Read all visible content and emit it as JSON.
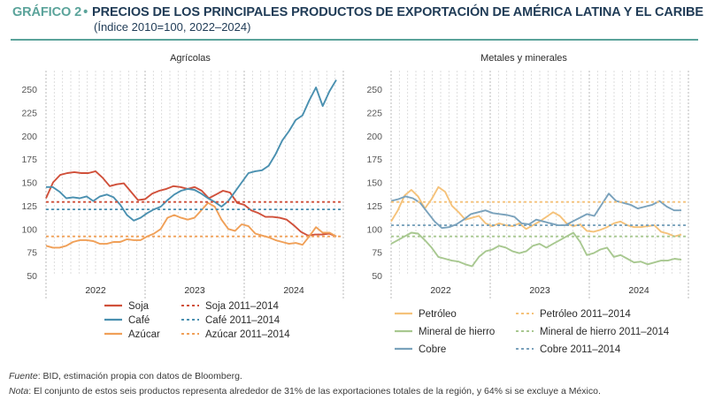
{
  "header": {
    "figure_label": "GRÁFICO 2",
    "separator": "•",
    "title": "PRECIOS DE LOS PRINCIPALES PRODUCTOS DE EXPORTACIÓN DE AMÉRICA LATINA Y EL CARIBE",
    "subtitle": "(Índice 2010=100, 2022–2024)"
  },
  "chart_data": [
    {
      "type": "line",
      "title": "Agrícolas",
      "ylim": [
        50,
        270
      ],
      "yticks": [
        50,
        75,
        100,
        125,
        150,
        175,
        200,
        225,
        250
      ],
      "x_labels": [
        "2022",
        "2023",
        "2024"
      ],
      "x_range": [
        "2022-01",
        "2024-12"
      ],
      "grid": "vertical-dashed",
      "legend_placement": "bottom",
      "series": [
        {
          "name": "Soja",
          "color": "#d0503a",
          "style": "solid",
          "values": [
            133,
            150,
            158,
            160,
            161,
            160,
            160,
            162,
            155,
            146,
            148,
            149,
            140,
            131,
            132,
            138,
            141,
            143,
            146,
            145,
            143,
            145,
            141,
            133,
            137,
            141,
            139,
            128,
            126,
            120,
            117,
            113,
            113,
            112,
            110,
            104,
            97,
            93,
            94,
            94,
            95,
            92
          ]
        },
        {
          "name": "Café",
          "color": "#4a90b0",
          "style": "solid",
          "values": [
            145,
            145,
            140,
            133,
            134,
            133,
            135,
            130,
            135,
            137,
            134,
            126,
            115,
            109,
            112,
            117,
            121,
            124,
            131,
            137,
            141,
            143,
            142,
            138,
            133,
            129,
            124,
            130,
            140,
            150,
            160,
            162,
            163,
            168,
            180,
            195,
            205,
            217,
            222,
            238,
            252,
            232,
            248,
            260
          ]
        },
        {
          "name": "Azúcar",
          "color": "#f0a058",
          "style": "solid",
          "values": [
            82,
            80,
            80,
            82,
            86,
            88,
            88,
            87,
            84,
            84,
            86,
            86,
            89,
            88,
            88,
            92,
            95,
            100,
            112,
            115,
            112,
            110,
            112,
            120,
            128,
            124,
            110,
            100,
            98,
            105,
            103,
            95,
            93,
            91,
            88,
            86,
            84,
            85,
            83,
            92,
            102,
            96,
            96,
            92
          ]
        },
        {
          "name": "Soja 2011–2014",
          "color": "#d0503a",
          "style": "dashed",
          "values": [
            129
          ]
        },
        {
          "name": "Café 2011–2014",
          "color": "#4a90b0",
          "style": "dashed",
          "values": [
            121
          ]
        },
        {
          "name": "Azúcar 2011–2014",
          "color": "#f0a058",
          "style": "dashed",
          "values": [
            92
          ]
        }
      ]
    },
    {
      "type": "line",
      "title": "Metales y minerales",
      "ylim": [
        50,
        270
      ],
      "yticks": [
        50,
        75,
        100,
        125,
        150,
        175,
        200,
        225,
        250
      ],
      "x_labels": [
        "2022",
        "2023",
        "2024"
      ],
      "x_range": [
        "2022-01",
        "2024-12"
      ],
      "grid": "vertical-dashed",
      "legend_placement": "bottom",
      "series": [
        {
          "name": "Petróleo",
          "color": "#f5c27a",
          "style": "solid",
          "values": [
            108,
            120,
            136,
            142,
            135,
            122,
            132,
            145,
            140,
            125,
            118,
            110,
            112,
            114,
            106,
            103,
            106,
            104,
            103,
            106,
            100,
            104,
            108,
            113,
            118,
            114,
            106,
            103,
            105,
            98,
            97,
            99,
            102,
            106,
            108,
            104,
            102,
            102,
            103,
            104,
            97,
            95,
            92,
            94
          ]
        },
        {
          "name": "Mineral de hierro",
          "color": "#a8c890",
          "style": "solid",
          "values": [
            84,
            88,
            92,
            96,
            95,
            88,
            80,
            70,
            68,
            66,
            65,
            62,
            60,
            70,
            76,
            78,
            82,
            80,
            76,
            74,
            76,
            82,
            84,
            80,
            84,
            88,
            92,
            96,
            86,
            72,
            74,
            78,
            80,
            70,
            72,
            68,
            64,
            65,
            62,
            64,
            66,
            66,
            68,
            67
          ]
        },
        {
          "name": "Cobre",
          "color": "#7aa2bc",
          "style": "solid",
          "values": [
            130,
            132,
            135,
            133,
            128,
            118,
            108,
            101,
            102,
            105,
            110,
            116,
            118,
            120,
            117,
            116,
            115,
            113,
            106,
            105,
            110,
            108,
            106,
            104,
            104,
            108,
            112,
            116,
            114,
            126,
            138,
            130,
            128,
            126,
            122,
            124,
            126,
            130,
            124,
            120,
            120
          ]
        },
        {
          "name": "Petróleo 2011–2014",
          "color": "#f5c27a",
          "style": "dashed",
          "values": [
            129
          ]
        },
        {
          "name": "Mineral de hierro 2011–2014",
          "color": "#a8c890",
          "style": "dashed",
          "values": [
            92
          ]
        },
        {
          "name": "Cobre 2011–2014",
          "color": "#7aa2bc",
          "style": "dashed",
          "values": [
            104
          ]
        }
      ]
    }
  ],
  "footer": {
    "fuente_label": "Fuente",
    "fuente_text": ": BID, estimación propia con datos de Bloomberg.",
    "nota_label": "Nota",
    "nota_text": ": El conjunto de estos seis productos representa alrededor de 31% de las exportaciones totales de la región, y 64% si se excluye a México."
  }
}
